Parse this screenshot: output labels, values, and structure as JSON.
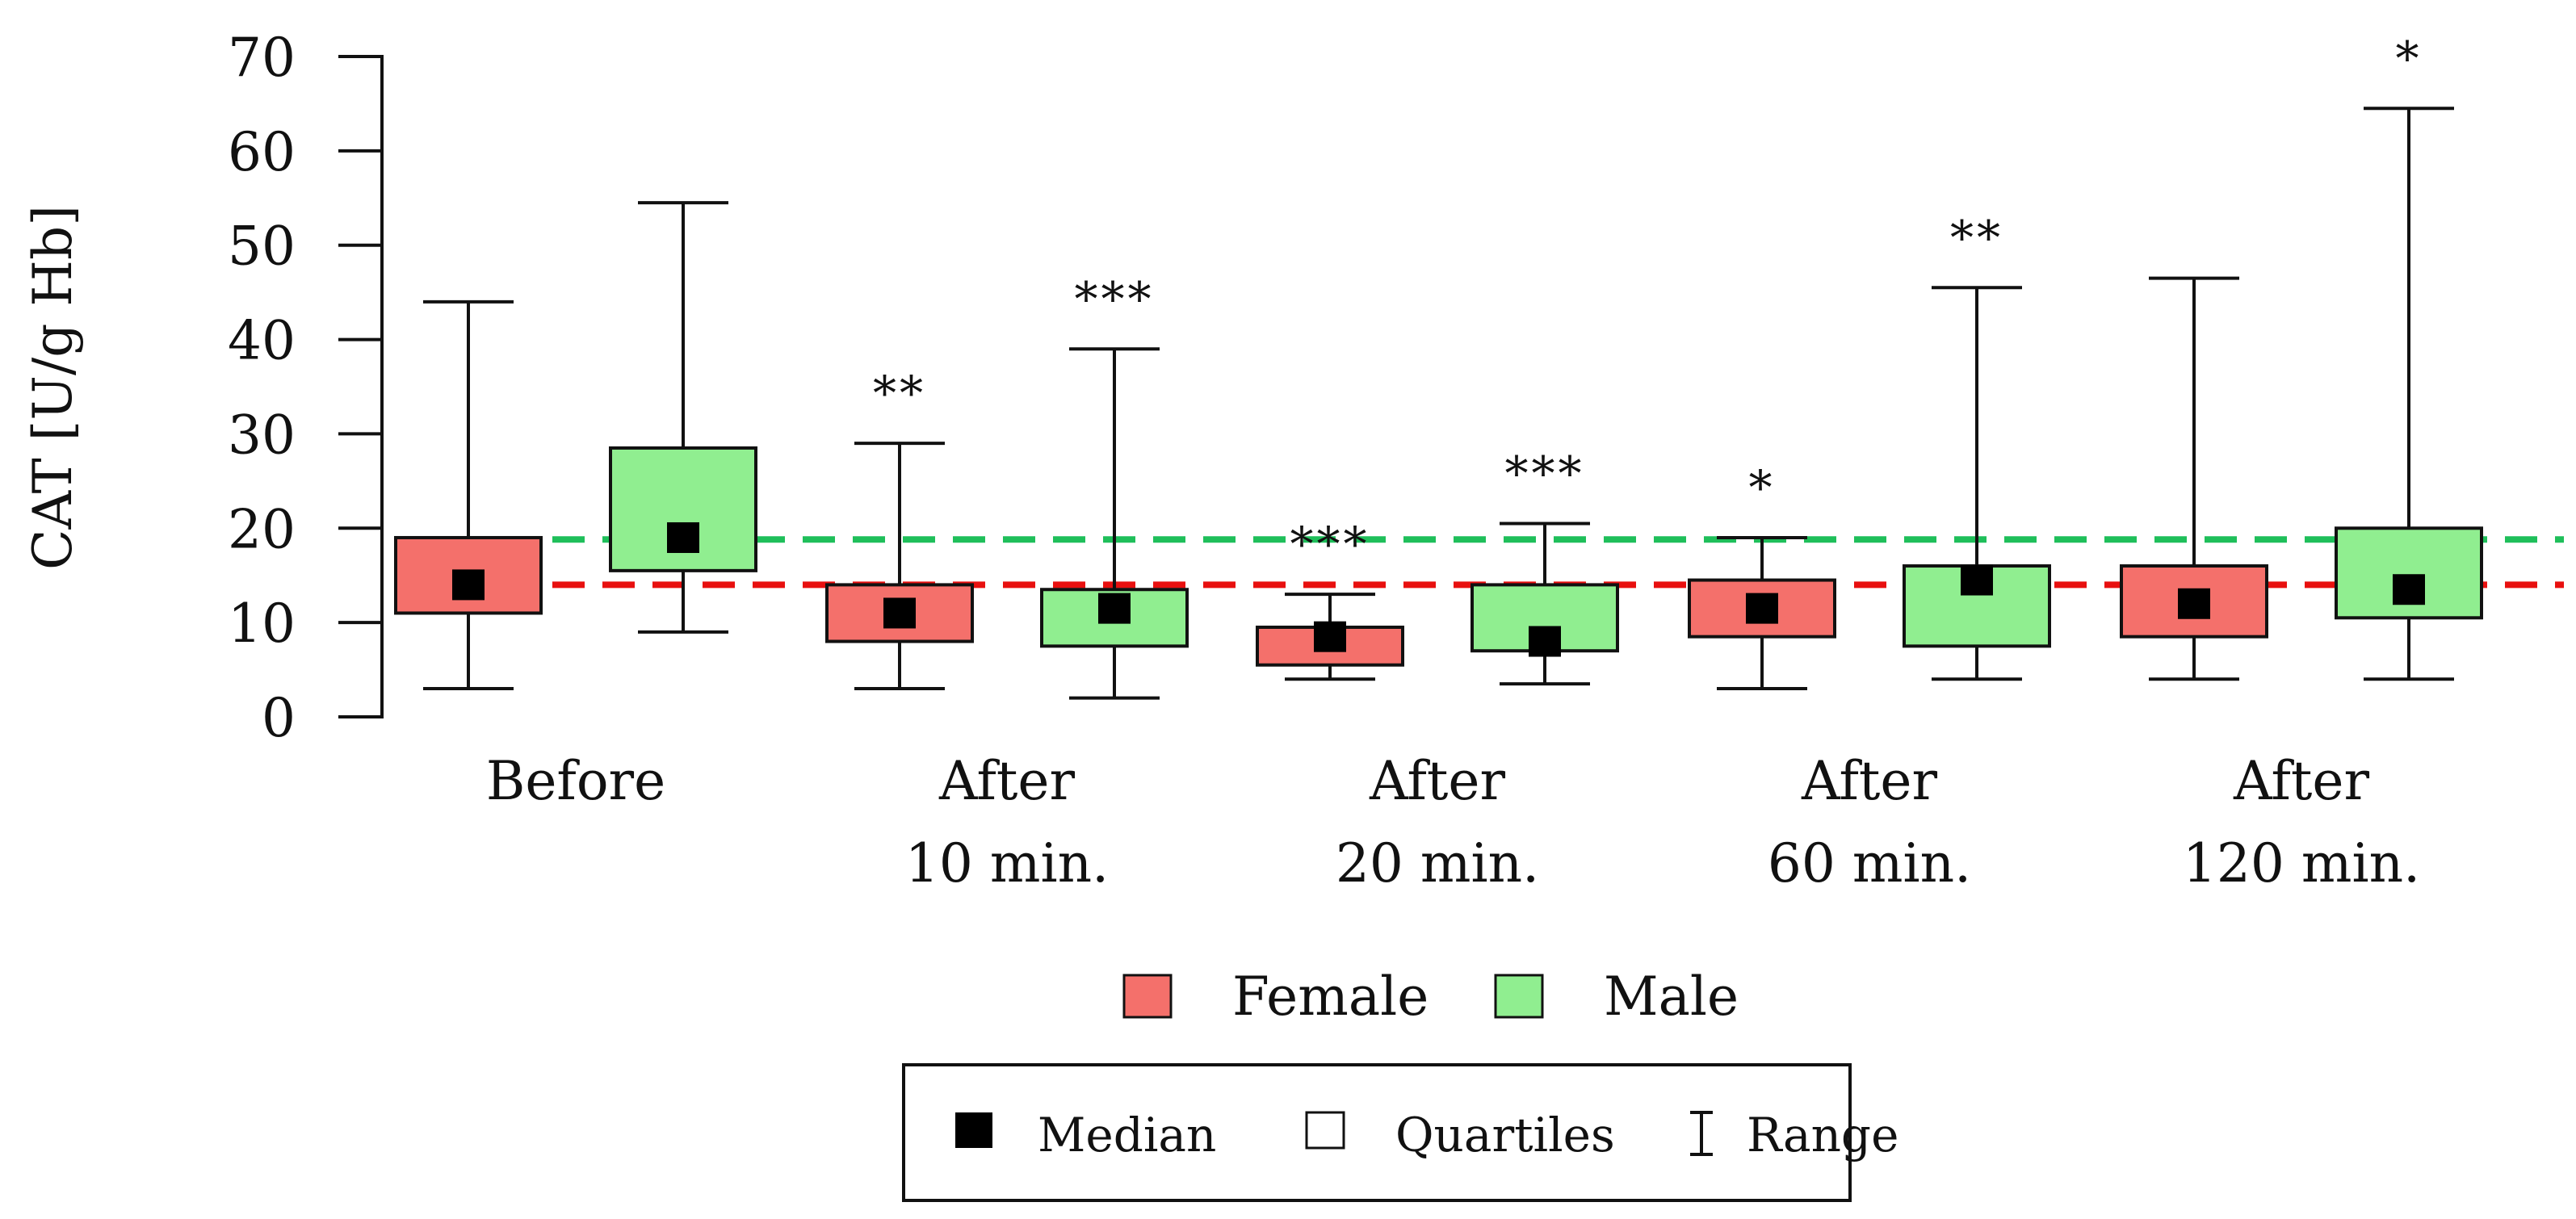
{
  "chart_data": {
    "type": "boxplot",
    "ylabel": "CAT [U/g Hb]",
    "ylim": [
      0,
      70
    ],
    "yticks": [
      0,
      10,
      20,
      30,
      40,
      50,
      60,
      70
    ],
    "categories": [
      {
        "line1": "Before",
        "line2": ""
      },
      {
        "line1": "After",
        "line2": "10 min."
      },
      {
        "line1": "After",
        "line2": "20 min."
      },
      {
        "line1": "After",
        "line2": "60 min."
      },
      {
        "line1": "After",
        "line2": "120 min."
      }
    ],
    "series": [
      {
        "name": "Female",
        "color": "#f4706b",
        "reference_line": 14,
        "reference_color": "#e8100f",
        "boxes": [
          {
            "min": 3,
            "q1": 11,
            "median": 14,
            "q3": 19,
            "max": 44,
            "sig": ""
          },
          {
            "min": 3,
            "q1": 8,
            "median": 11,
            "q3": 14,
            "max": 29,
            "sig": "**"
          },
          {
            "min": 4,
            "q1": 5.5,
            "median": 8.5,
            "q3": 9.5,
            "max": 13,
            "sig": "***"
          },
          {
            "min": 3,
            "q1": 8.5,
            "median": 11.5,
            "q3": 14.5,
            "max": 19,
            "sig": "*"
          },
          {
            "min": 4,
            "q1": 8.5,
            "median": 12,
            "q3": 16,
            "max": 46.5,
            "sig": ""
          }
        ]
      },
      {
        "name": "Male",
        "color": "#90ee90",
        "reference_line": 18.8,
        "reference_color": "#1fbf5a",
        "boxes": [
          {
            "min": 9,
            "q1": 15.5,
            "median": 19,
            "q3": 28.5,
            "max": 54.5,
            "sig": ""
          },
          {
            "min": 2,
            "q1": 7.5,
            "median": 11.5,
            "q3": 13.5,
            "max": 39,
            "sig": "***"
          },
          {
            "min": 3.5,
            "q1": 7,
            "median": 8,
            "q3": 14,
            "max": 20.5,
            "sig": "***"
          },
          {
            "min": 4,
            "q1": 7.5,
            "median": 14.5,
            "q3": 16,
            "max": 45.5,
            "sig": "**"
          },
          {
            "min": 4,
            "q1": 10.5,
            "median": 13.5,
            "q3": 20,
            "max": 64.5,
            "sig": "*"
          }
        ]
      }
    ],
    "legend": {
      "position": "bottom",
      "items": [
        "Female",
        "Male"
      ]
    },
    "key": [
      {
        "label": "Median",
        "symbol": "filled-square"
      },
      {
        "label": "Quartiles",
        "symbol": "open-square"
      },
      {
        "label": "Range",
        "symbol": "range-bar"
      }
    ]
  }
}
